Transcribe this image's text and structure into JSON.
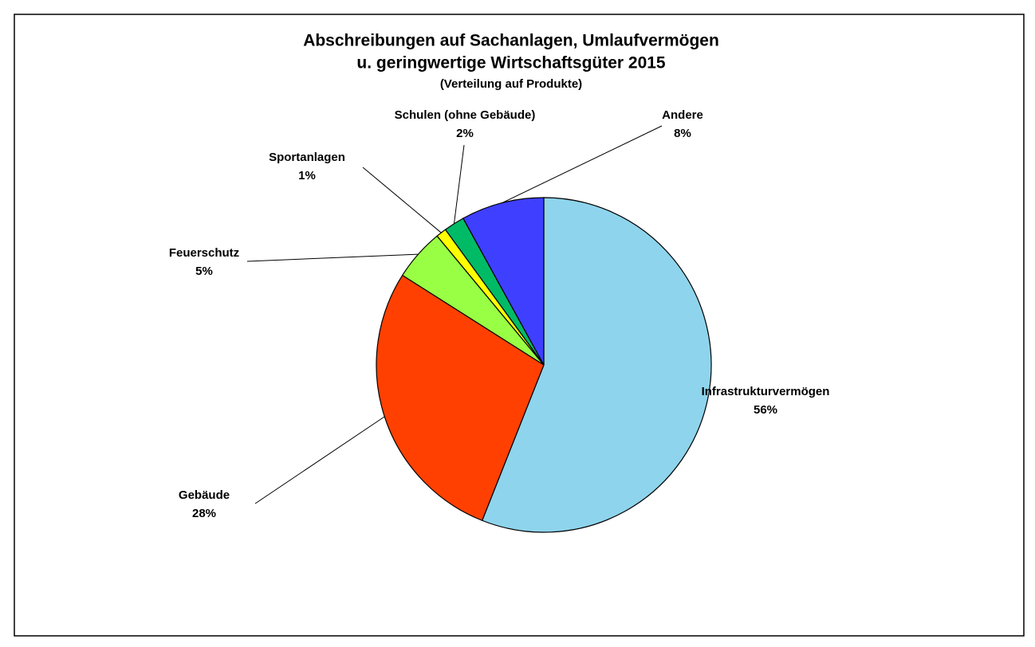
{
  "chart_data": {
    "type": "pie",
    "title": [
      "Abschreibungen auf Sachanlagen, Umlaufvermögen",
      "u. geringwertige Wirtschaftsgüter 2015"
    ],
    "subtitle": "(Verteilung auf Produkte)",
    "categories": [
      "Infrastrukturvermögen",
      "Gebäude",
      "Feuerschutz",
      "Sportanlagen",
      "Schulen (ohne Gebäude)",
      "Andere"
    ],
    "values": [
      56,
      28,
      5,
      1,
      2,
      8
    ],
    "value_labels": [
      "56%",
      "28%",
      "5%",
      "1%",
      "2%",
      "8%"
    ],
    "colors": [
      "#8ED4EC",
      "#FF4000",
      "#99FF44",
      "#FFFF00",
      "#00BB66",
      "#3F3FFF"
    ]
  }
}
